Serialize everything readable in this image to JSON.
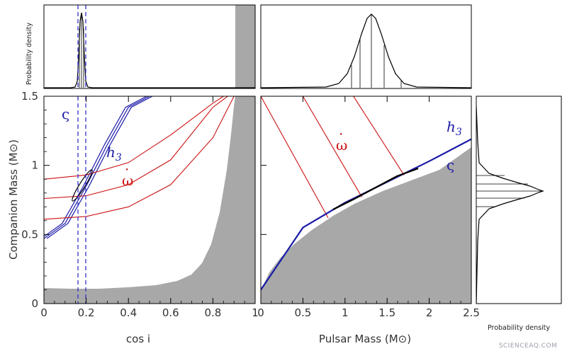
{
  "chart_data": [
    {
      "id": "main_left",
      "type": "line",
      "xlabel": "cos i",
      "ylabel": "Companion Mass (M⊙)",
      "xlim": [
        0,
        1
      ],
      "ylim": [
        0,
        1.5
      ],
      "xticks": [
        "0",
        "0.2",
        "0.4",
        "0.6",
        "0.8",
        "1"
      ],
      "yticks": [
        "0",
        "0.5",
        "1",
        "1.5"
      ],
      "labels": {
        "varsigma": "ς",
        "h3": "h",
        "h3_sub": "3",
        "omegadot": "ω",
        "omegadot_dot": "·"
      },
      "series": [
        {
          "kind": "h3",
          "cos_i": [
            0.0,
            0.1,
            0.2,
            0.3,
            0.4,
            0.5
          ],
          "mc": [
            0.47,
            0.58,
            0.85,
            1.15,
            1.42,
            1.5
          ]
        },
        {
          "kind": "omegadot",
          "cos_i": [
            0.0,
            0.2,
            0.4,
            0.6,
            0.8,
            0.9,
            0.92
          ],
          "mc": [
            0.61,
            0.63,
            0.7,
            0.86,
            1.2,
            1.5,
            1.5
          ]
        },
        {
          "kind": "omegadot",
          "cos_i": [
            0.0,
            0.2,
            0.4,
            0.6,
            0.8,
            0.87
          ],
          "mc": [
            0.76,
            0.78,
            0.86,
            1.04,
            1.42,
            1.5
          ]
        },
        {
          "kind": "omegadot",
          "cos_i": [
            0.0,
            0.2,
            0.4,
            0.6,
            0.8,
            0.85
          ],
          "mc": [
            0.9,
            0.93,
            1.02,
            1.22,
            1.45,
            1.5
          ]
        },
        {
          "kind": "varsigma",
          "cos_i": [
            0.16,
            0.2
          ]
        }
      ],
      "excluded_region": {
        "lower_band_mc": 0.1,
        "cos_i_limit": 0.92
      }
    },
    {
      "id": "main_right",
      "type": "line",
      "xlabel": "Pulsar Mass (M⊙)",
      "xlim": [
        0,
        2.5
      ],
      "ylim": [
        0,
        1.5
      ],
      "xticks": [
        "0",
        "0.5",
        "1",
        "1.5",
        "2",
        "2.5"
      ],
      "labels": {
        "varsigma": "ς",
        "h3": "h",
        "h3_sub": "3",
        "omegadot": "ω",
        "omegadot_dot": "·"
      },
      "series": [
        {
          "kind": "omegadot",
          "mp": [
            0.0,
            0.8
          ],
          "mc": [
            1.5,
            0.62
          ]
        },
        {
          "kind": "omegadot",
          "mp": [
            0.5,
            1.2
          ],
          "mc": [
            1.5,
            0.77
          ]
        },
        {
          "kind": "omegadot",
          "mp": [
            1.1,
            1.7
          ],
          "mc": [
            1.5,
            0.93
          ]
        },
        {
          "kind": "h3",
          "mp": [
            0.0,
            0.5,
            1.0,
            1.5,
            2.0,
            2.5
          ],
          "mc": [
            0.1,
            0.55,
            0.73,
            0.88,
            1.03,
            1.19
          ]
        }
      ]
    },
    {
      "id": "top_left_pdf",
      "type": "line",
      "ylabel": "Probability density",
      "peak_cos_i": 0.175
    },
    {
      "id": "top_right_pdf",
      "type": "line",
      "peak_mp": 1.3
    },
    {
      "id": "right_pdf",
      "type": "line",
      "xlabel": "Probability density",
      "peak_mc": 0.79
    }
  ],
  "watermark": "SCIENCEAQ.COM",
  "colors": {
    "blue": "#1a1aa8",
    "red": "#cc1111",
    "gray": "#a8a8a8",
    "black": "#000000"
  }
}
